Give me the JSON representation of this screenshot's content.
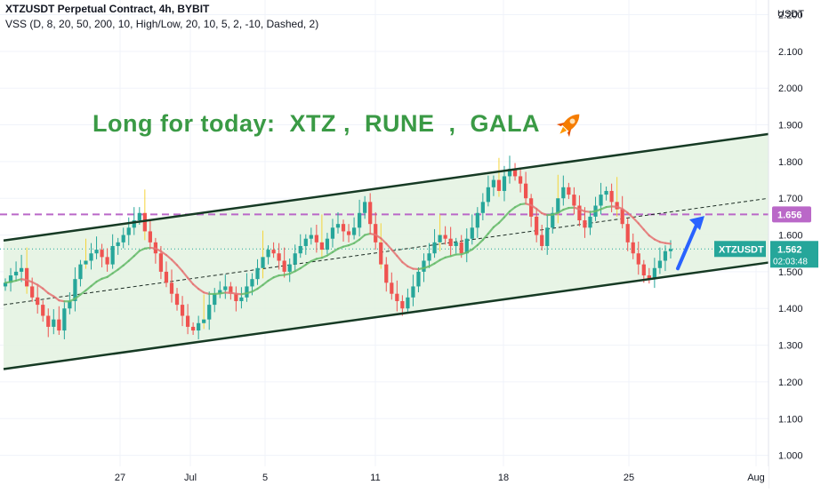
{
  "header": {
    "symbol_line": "XTZUSDT Perpetual Contract, 4h, BYBIT",
    "indicator_line": "VSS (D, 8, 20, 50, 200, 10, High/Low, 20, 10, 5, 2, -10, Dashed, 2)"
  },
  "annotation": {
    "headline": "Long for today:  XTZ ,  RUNE  ,  GALA",
    "icon": "rocket-icon"
  },
  "colors": {
    "up": "#26a69a",
    "down": "#ef5350",
    "channel": "#163a24",
    "channel_fill": "#e3f2e1",
    "wick_highlight": "#f5d43a",
    "resistance_dashed": "#ba68c8",
    "arrow": "#2962ff",
    "headline": "#3a9a45",
    "price_tag": "#26a69a"
  },
  "chart_data": {
    "type": "candlestick",
    "title": "XTZUSDT Perpetual Contract, 4h, BYBIT",
    "y_axis": {
      "unit": "USDT",
      "range": [
        0.97,
        2.24
      ],
      "ticks": [
        "2.200",
        "2.100",
        "2.000",
        "1.900",
        "1.800",
        "1.700",
        "1.600",
        "1.500",
        "1.400",
        "1.300",
        "1.200",
        "1.100",
        "1.000"
      ]
    },
    "x_axis": {
      "ticks": [
        "27",
        "Jul",
        "5",
        "11",
        "18",
        "25",
        "Aug"
      ]
    },
    "last_price": {
      "symbol": "XTZUSDT",
      "value": "1.562",
      "countdown": "02:03:48"
    },
    "resistance_level": {
      "value": "1.656",
      "style": "dashed"
    },
    "channel": {
      "upper": [
        [
          0,
          1.585
        ],
        [
          148,
          1.875
        ]
      ],
      "lower": [
        [
          0,
          1.235
        ],
        [
          148,
          1.525
        ]
      ],
      "midline": [
        [
          0,
          1.41
        ],
        [
          148,
          1.7
        ]
      ]
    },
    "grid": true,
    "closes": [
      1.47,
      1.49,
      1.5,
      1.51,
      1.46,
      1.43,
      1.41,
      1.38,
      1.35,
      1.37,
      1.34,
      1.4,
      1.42,
      1.48,
      1.52,
      1.53,
      1.55,
      1.56,
      1.54,
      1.52,
      1.57,
      1.58,
      1.6,
      1.62,
      1.64,
      1.66,
      1.61,
      1.58,
      1.55,
      1.5,
      1.47,
      1.44,
      1.41,
      1.38,
      1.35,
      1.34,
      1.36,
      1.37,
      1.41,
      1.44,
      1.45,
      1.46,
      1.44,
      1.42,
      1.43,
      1.46,
      1.48,
      1.51,
      1.54,
      1.56,
      1.55,
      1.53,
      1.5,
      1.52,
      1.55,
      1.57,
      1.59,
      1.6,
      1.58,
      1.56,
      1.59,
      1.62,
      1.63,
      1.61,
      1.6,
      1.62,
      1.66,
      1.69,
      1.63,
      1.58,
      1.52,
      1.47,
      1.44,
      1.42,
      1.4,
      1.43,
      1.46,
      1.5,
      1.53,
      1.55,
      1.58,
      1.6,
      1.59,
      1.57,
      1.58,
      1.55,
      1.59,
      1.62,
      1.66,
      1.69,
      1.73,
      1.75,
      1.72,
      1.76,
      1.78,
      1.76,
      1.74,
      1.7,
      1.65,
      1.6,
      1.57,
      1.62,
      1.66,
      1.7,
      1.73,
      1.71,
      1.68,
      1.64,
      1.62,
      1.65,
      1.68,
      1.71,
      1.72,
      1.69,
      1.67,
      1.63,
      1.58,
      1.55,
      1.52,
      1.49,
      1.48,
      1.51,
      1.53,
      1.556,
      1.562
    ],
    "ema": [
      {
        "name": "EMA",
        "style": "bearish-red-then-green",
        "note": ""
      }
    ]
  }
}
